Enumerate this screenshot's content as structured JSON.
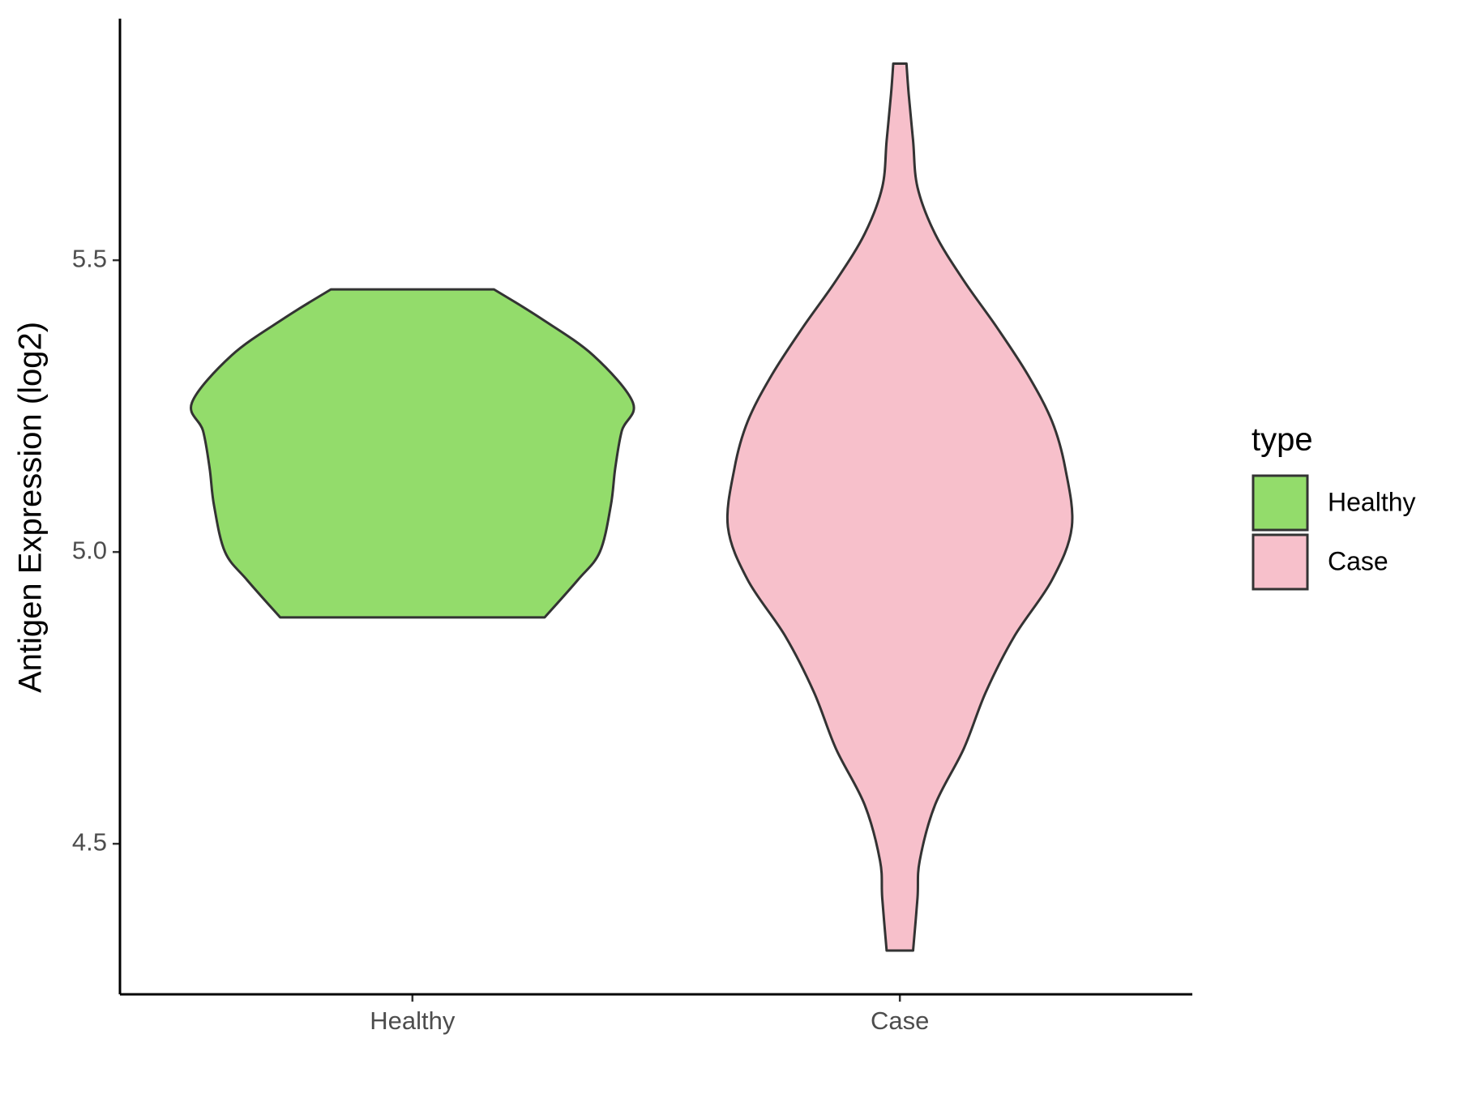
{
  "chart_data": {
    "type": "violin",
    "y_label": "Antigen Expression (log2)",
    "categories": [
      "Healthy",
      "Case"
    ],
    "ylim": [
      4.242,
      5.914
    ],
    "yticks": [
      {
        "value": 4.5,
        "label": "4.5"
      },
      {
        "value": 5,
        "label": "5.0"
      },
      {
        "value": 5.5,
        "label": "5.5"
      }
    ],
    "legend_title": "type",
    "legend_position": "right",
    "violins": [
      {
        "name": "Healthy",
        "color": "#93dc6b",
        "y": [
          5.45,
          5.401,
          5.337,
          5.256,
          5.208,
          5.144,
          5.08,
          5.0,
          4.952,
          4.888
        ],
        "density": [
          0.37,
          0.58,
          0.82,
          1.0,
          0.95,
          0.92,
          0.9,
          0.85,
          0.75,
          0.6
        ]
      },
      {
        "name": "Case",
        "color": "#f7c0cb",
        "y": [
          5.837,
          5.785,
          5.705,
          5.625,
          5.545,
          5.465,
          5.385,
          5.304,
          5.224,
          5.144,
          5.043,
          4.952,
          4.856,
          4.76,
          4.663,
          4.567,
          4.471,
          4.407,
          4.317
        ],
        "density": [
          0.03,
          0.04,
          0.06,
          0.08,
          0.16,
          0.29,
          0.44,
          0.58,
          0.69,
          0.75,
          0.78,
          0.69,
          0.52,
          0.39,
          0.29,
          0.16,
          0.09,
          0.08,
          0.06
        ]
      }
    ]
  }
}
